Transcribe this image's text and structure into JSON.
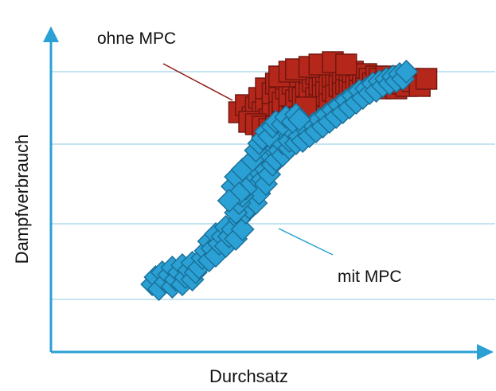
{
  "chart_data": {
    "type": "scatter",
    "title": "",
    "xlabel": "Durchsatz",
    "ylabel": "Dampfverbrauch",
    "xlim": [
      0,
      100
    ],
    "ylim": [
      0,
      100
    ],
    "grid": true,
    "axis_ticks": false,
    "series": [
      {
        "name": "ohne MPC",
        "color": "#b5271a",
        "edge_color": "#6e1510",
        "marker": "square",
        "points": [
          [
            42,
            82
          ],
          [
            44,
            85
          ],
          [
            46,
            80
          ],
          [
            47,
            84
          ],
          [
            48,
            88
          ],
          [
            49,
            82
          ],
          [
            50,
            86
          ],
          [
            50,
            92
          ],
          [
            51,
            79
          ],
          [
            52,
            84
          ],
          [
            52,
            90
          ],
          [
            53,
            94
          ],
          [
            54,
            88
          ],
          [
            54,
            82
          ],
          [
            55,
            86
          ],
          [
            55,
            78
          ],
          [
            56,
            92
          ],
          [
            56,
            96
          ],
          [
            57,
            84
          ],
          [
            57,
            89
          ],
          [
            58,
            80
          ],
          [
            58,
            94
          ],
          [
            59,
            87
          ],
          [
            60,
            91
          ],
          [
            60,
            97
          ],
          [
            61,
            83
          ],
          [
            61,
            88
          ],
          [
            62,
            93
          ],
          [
            62,
            78
          ],
          [
            63,
            86
          ],
          [
            63,
            90
          ],
          [
            64,
            95
          ],
          [
            64,
            82
          ],
          [
            65,
            88
          ],
          [
            65,
            98
          ],
          [
            66,
            92
          ],
          [
            66,
            85
          ],
          [
            67,
            96
          ],
          [
            67,
            89
          ],
          [
            68,
            93
          ],
          [
            68,
            99
          ],
          [
            69,
            87
          ],
          [
            69,
            94
          ],
          [
            70,
            91
          ],
          [
            70,
            97
          ],
          [
            71,
            95
          ],
          [
            71,
            89
          ],
          [
            72,
            99
          ],
          [
            72,
            93
          ],
          [
            73,
            96
          ],
          [
            73,
            90
          ],
          [
            74,
            94
          ],
          [
            74,
            100
          ],
          [
            75,
            97
          ],
          [
            75,
            91
          ],
          [
            76,
            95
          ],
          [
            76,
            99
          ],
          [
            77,
            93
          ],
          [
            78,
            97
          ],
          [
            78,
            91
          ],
          [
            79,
            95
          ],
          [
            80,
            98
          ],
          [
            80,
            92
          ],
          [
            81,
            96
          ],
          [
            82,
            94
          ],
          [
            83,
            97
          ],
          [
            84,
            92
          ],
          [
            84,
            96
          ],
          [
            85,
            94
          ],
          [
            86,
            97
          ],
          [
            87,
            93
          ],
          [
            88,
            95
          ],
          [
            89,
            92
          ],
          [
            90,
            96
          ],
          [
            91,
            94
          ],
          [
            92,
            93
          ],
          [
            93,
            96
          ],
          [
            94,
            95
          ],
          [
            96,
            93
          ],
          [
            98,
            96
          ],
          [
            45,
            78
          ],
          [
            47,
            77
          ],
          [
            49,
            76
          ],
          [
            51,
            75
          ],
          [
            53,
            76
          ],
          [
            55,
            75
          ],
          [
            58,
            77
          ],
          [
            60,
            80
          ],
          [
            62,
            84
          ],
          [
            54,
            97
          ],
          [
            57,
            99
          ],
          [
            59,
            100
          ],
          [
            63,
            101
          ],
          [
            66,
            102
          ],
          [
            70,
            103
          ],
          [
            74,
            102
          ]
        ]
      },
      {
        "name": "mit MPC",
        "color": "#2aa0d4",
        "edge_color": "#1a6e96",
        "marker": "diamond",
        "points": [
          [
            16,
            10
          ],
          [
            17,
            13
          ],
          [
            18,
            8
          ],
          [
            19,
            15
          ],
          [
            20,
            11
          ],
          [
            21,
            14
          ],
          [
            22,
            9
          ],
          [
            22,
            17
          ],
          [
            23,
            12
          ],
          [
            24,
            15
          ],
          [
            25,
            10
          ],
          [
            25,
            18
          ],
          [
            26,
            13
          ],
          [
            27,
            16
          ],
          [
            28,
            12
          ],
          [
            28,
            19
          ],
          [
            29,
            15
          ],
          [
            30,
            17
          ],
          [
            31,
            21
          ],
          [
            32,
            24
          ],
          [
            33,
            20
          ],
          [
            33,
            28
          ],
          [
            34,
            25
          ],
          [
            35,
            22
          ],
          [
            35,
            31
          ],
          [
            36,
            27
          ],
          [
            37,
            30
          ],
          [
            38,
            26
          ],
          [
            38,
            34
          ],
          [
            39,
            30
          ],
          [
            40,
            33
          ],
          [
            41,
            29
          ],
          [
            42,
            37
          ],
          [
            43,
            33
          ],
          [
            44,
            40
          ],
          [
            44,
            45
          ],
          [
            45,
            42
          ],
          [
            45,
            50
          ],
          [
            46,
            47
          ],
          [
            46,
            54
          ],
          [
            47,
            44
          ],
          [
            47,
            51
          ],
          [
            48,
            57
          ],
          [
            48,
            48
          ],
          [
            49,
            54
          ],
          [
            49,
            61
          ],
          [
            50,
            58
          ],
          [
            50,
            52
          ],
          [
            51,
            64
          ],
          [
            51,
            56
          ],
          [
            52,
            60
          ],
          [
            52,
            67
          ],
          [
            53,
            62
          ],
          [
            54,
            66
          ],
          [
            54,
            71
          ],
          [
            55,
            64
          ],
          [
            55,
            69
          ],
          [
            56,
            73
          ],
          [
            57,
            67
          ],
          [
            57,
            70
          ],
          [
            58,
            74
          ],
          [
            59,
            69
          ],
          [
            60,
            72
          ],
          [
            61,
            70
          ],
          [
            62,
            75
          ],
          [
            63,
            72
          ],
          [
            64,
            77
          ],
          [
            65,
            74
          ],
          [
            66,
            79
          ],
          [
            67,
            76
          ],
          [
            68,
            81
          ],
          [
            69,
            78
          ],
          [
            70,
            83
          ],
          [
            71,
            80
          ],
          [
            72,
            85
          ],
          [
            73,
            82
          ],
          [
            74,
            87
          ],
          [
            75,
            84
          ],
          [
            76,
            89
          ],
          [
            77,
            86
          ],
          [
            78,
            91
          ],
          [
            79,
            88
          ],
          [
            80,
            92
          ],
          [
            81,
            90
          ],
          [
            82,
            94
          ],
          [
            83,
            91
          ],
          [
            84,
            95
          ],
          [
            85,
            93
          ],
          [
            86,
            96
          ],
          [
            87,
            94
          ],
          [
            88,
            97
          ],
          [
            89,
            95
          ],
          [
            90,
            98
          ],
          [
            91,
            96
          ],
          [
            92,
            99
          ],
          [
            41,
            40
          ],
          [
            42,
            44
          ],
          [
            43,
            47
          ],
          [
            44,
            50
          ],
          [
            40,
            51
          ],
          [
            41,
            55
          ],
          [
            42,
            48
          ],
          [
            43,
            58
          ],
          [
            39,
            45
          ],
          [
            46,
            62
          ],
          [
            47,
            66
          ],
          [
            48,
            69
          ],
          [
            49,
            71
          ],
          [
            50,
            74
          ],
          [
            51,
            72
          ],
          [
            52,
            76
          ],
          [
            53,
            78
          ],
          [
            55,
            77
          ],
          [
            56,
            80
          ],
          [
            58,
            78
          ],
          [
            59,
            81
          ],
          [
            60,
            79
          ]
        ]
      }
    ],
    "annotations": [
      {
        "text": "ohne MPC",
        "series": "ohne MPC"
      },
      {
        "text": "mit MPC",
        "series": "mit MPC"
      }
    ]
  }
}
